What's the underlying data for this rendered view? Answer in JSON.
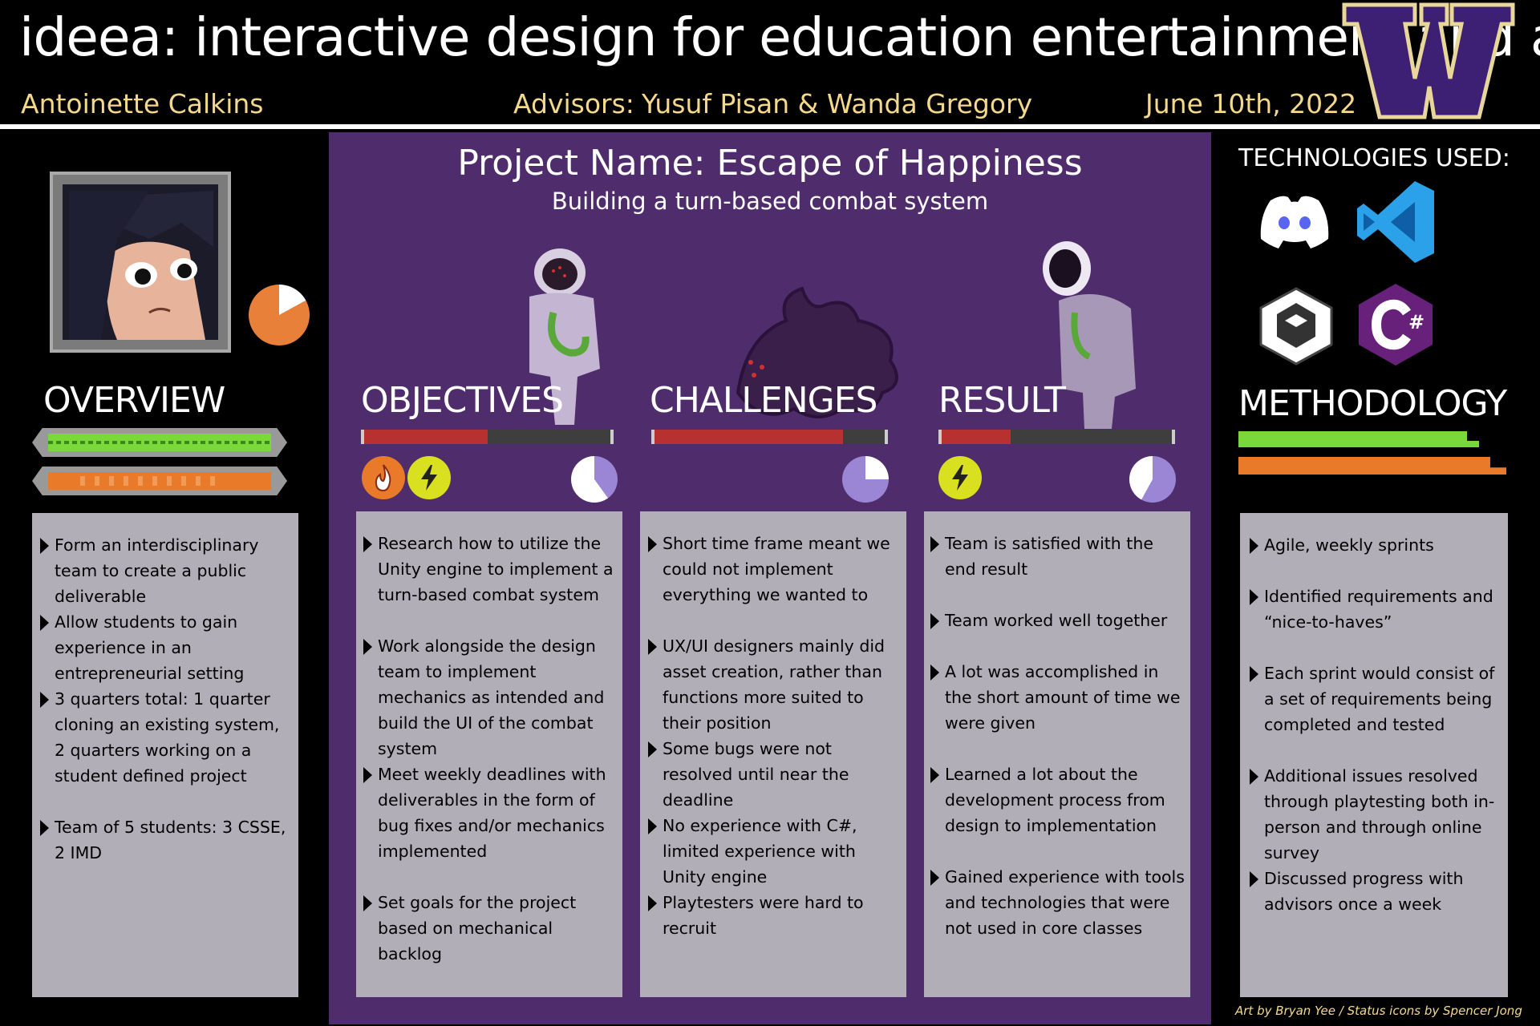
{
  "header": {
    "title": "ideea: interactive design for education entertainment and art",
    "author": "Antoinette Calkins",
    "advisors_label": "Advisors:",
    "advisors": "Yusuf Pisan & Wanda Gregory",
    "date": "June 10th, 2022",
    "logo_letter": "W"
  },
  "project": {
    "name": "Project Name: Escape of Happiness",
    "subtitle": "Building a turn-based combat system"
  },
  "colors": {
    "accent_gold": "#f5d98b",
    "uw_purple": "#3d1f73",
    "panel_purple": "#4f2c6c",
    "card_gray": "#b2aeb8",
    "health_green": "#7ad83a",
    "energy_orange": "#e87a2a",
    "hp_red": "#b73131"
  },
  "overview": {
    "title": "OVERVIEW",
    "items": [
      "Form an interdisciplinary team to create a public deliverable",
      "Allow students to gain experience in an entrepreneurial setting",
      "3 quarters total: 1 quarter cloning an existing system, 2 quarters working on a student defined project",
      "Team of 5 students: 3 CSSE, 2 IMD"
    ]
  },
  "objectives": {
    "title": "OBJECTIVES",
    "hp_fraction": 0.5,
    "status_icons": [
      "fire-icon",
      "lightning-icon"
    ],
    "items": [
      "Research how to utilize the Unity engine to implement a turn-based combat system",
      "Work alongside the design team to implement mechanics as intended and build the UI of the combat system",
      "Meet weekly deadlines with deliverables in the form of bug fixes and/or mechanics implemented",
      "Set goals for the project based on mechanical backlog"
    ]
  },
  "challenges": {
    "title": "CHALLENGES",
    "hp_fraction": 0.82,
    "items": [
      "Short time frame meant we could not implement everything we wanted to",
      "UX/UI designers mainly did asset creation, rather than functions more suited to their position",
      "Some bugs were not resolved until near the deadline",
      "No experience with C#, limited experience with Unity engine",
      "Playtesters were hard to recruit"
    ]
  },
  "result": {
    "title": "RESULT",
    "hp_fraction": 0.3,
    "status_icons": [
      "lightning-icon"
    ],
    "items": [
      "Team is satisfied with the end result",
      "Team worked well together",
      "A lot was accomplished in the short amount of time we were given",
      "Learned a lot about the development process from design to implementation",
      "Gained experience with tools and technologies that were not used in core classes"
    ]
  },
  "technologies": {
    "title": "TECHNOLOGIES USED:",
    "icons": [
      "discord-icon",
      "vscode-icon",
      "unity-icon",
      "csharp-icon"
    ]
  },
  "methodology": {
    "title": "METHODOLOGY",
    "items": [
      "Agile, weekly sprints",
      "Identified requirements and “nice-to-haves”",
      "Each sprint would consist of a set of requirements being completed and tested",
      "Additional issues resolved through playtesting both in-person and through online survey",
      "Discussed progress with advisors once a week"
    ]
  },
  "credit": "Art by Bryan Yee / Status icons by Spencer Jong"
}
